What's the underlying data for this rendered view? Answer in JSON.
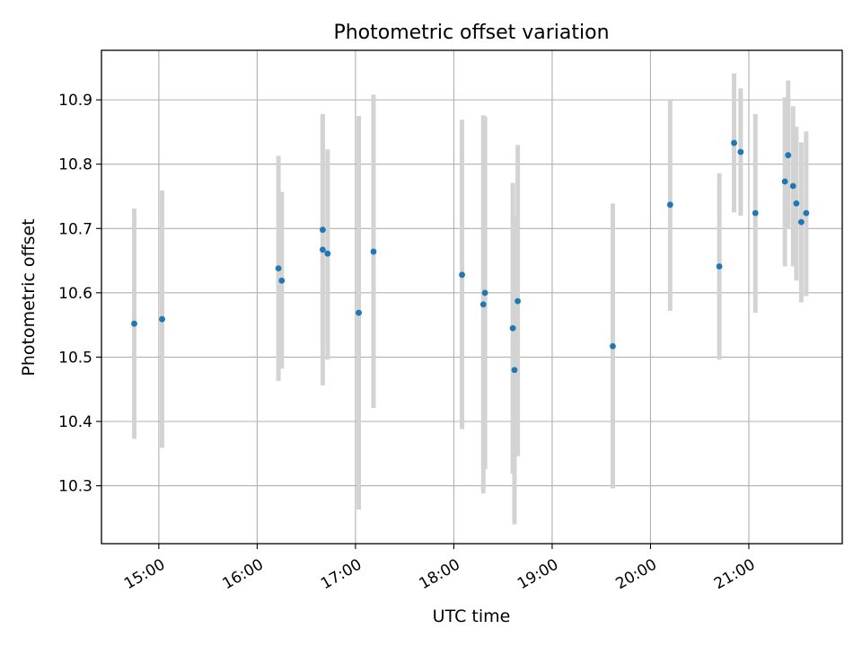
{
  "chart_data": {
    "type": "scatter",
    "title": "Photometric offset variation",
    "xlabel": "UTC time",
    "ylabel": "Photometric offset",
    "x_axis": "time",
    "xlim": [
      "14:25",
      "21:57"
    ],
    "ylim": [
      10.21,
      10.977
    ],
    "xticks": [
      "15:00",
      "16:00",
      "17:00",
      "18:00",
      "19:00",
      "20:00",
      "21:00"
    ],
    "yticks": [
      "10.3",
      "10.4",
      "10.5",
      "10.6",
      "10.7",
      "10.8",
      "10.9"
    ],
    "grid": true,
    "legend": "none",
    "point_color": "#1f77b4",
    "errorbar_color": "#d3d3d3",
    "points": [
      {
        "x": "14:45",
        "y": 10.552,
        "ylow": 10.373,
        "yhigh": 10.731
      },
      {
        "x": "15:02",
        "y": 10.559,
        "ylow": 10.359,
        "yhigh": 10.759
      },
      {
        "x": "16:13",
        "y": 10.638,
        "ylow": 10.463,
        "yhigh": 10.813
      },
      {
        "x": "16:15",
        "y": 10.619,
        "ylow": 10.482,
        "yhigh": 10.757
      },
      {
        "x": "16:40",
        "y": 10.698,
        "ylow": 10.518,
        "yhigh": 10.878
      },
      {
        "x": "16:40",
        "y": 10.667,
        "ylow": 10.456,
        "yhigh": 10.878
      },
      {
        "x": "16:43",
        "y": 10.661,
        "ylow": 10.496,
        "yhigh": 10.823
      },
      {
        "x": "17:02",
        "y": 10.569,
        "ylow": 10.263,
        "yhigh": 10.875
      },
      {
        "x": "17:11",
        "y": 10.664,
        "ylow": 10.421,
        "yhigh": 10.908
      },
      {
        "x": "18:05",
        "y": 10.628,
        "ylow": 10.388,
        "yhigh": 10.869
      },
      {
        "x": "18:18",
        "y": 10.582,
        "ylow": 10.288,
        "yhigh": 10.876
      },
      {
        "x": "18:19",
        "y": 10.6,
        "ylow": 10.326,
        "yhigh": 10.874
      },
      {
        "x": "18:36",
        "y": 10.545,
        "ylow": 10.319,
        "yhigh": 10.771
      },
      {
        "x": "18:37",
        "y": 10.48,
        "ylow": 10.24,
        "yhigh": 10.719
      },
      {
        "x": "18:39",
        "y": 10.587,
        "ylow": 10.346,
        "yhigh": 10.83
      },
      {
        "x": "19:37",
        "y": 10.517,
        "ylow": 10.296,
        "yhigh": 10.739
      },
      {
        "x": "20:12",
        "y": 10.737,
        "ylow": 10.572,
        "yhigh": 10.9
      },
      {
        "x": "20:42",
        "y": 10.641,
        "ylow": 10.496,
        "yhigh": 10.786
      },
      {
        "x": "20:51",
        "y": 10.833,
        "ylow": 10.725,
        "yhigh": 10.941
      },
      {
        "x": "20:55",
        "y": 10.819,
        "ylow": 10.72,
        "yhigh": 10.918
      },
      {
        "x": "21:04",
        "y": 10.724,
        "ylow": 10.569,
        "yhigh": 10.878
      },
      {
        "x": "21:22",
        "y": 10.773,
        "ylow": 10.641,
        "yhigh": 10.904
      },
      {
        "x": "21:24",
        "y": 10.814,
        "ylow": 10.699,
        "yhigh": 10.93
      },
      {
        "x": "21:27",
        "y": 10.766,
        "ylow": 10.641,
        "yhigh": 10.89
      },
      {
        "x": "21:29",
        "y": 10.739,
        "ylow": 10.619,
        "yhigh": 10.858
      },
      {
        "x": "21:32",
        "y": 10.71,
        "ylow": 10.585,
        "yhigh": 10.834
      },
      {
        "x": "21:35",
        "y": 10.724,
        "ylow": 10.595,
        "yhigh": 10.851
      }
    ]
  }
}
